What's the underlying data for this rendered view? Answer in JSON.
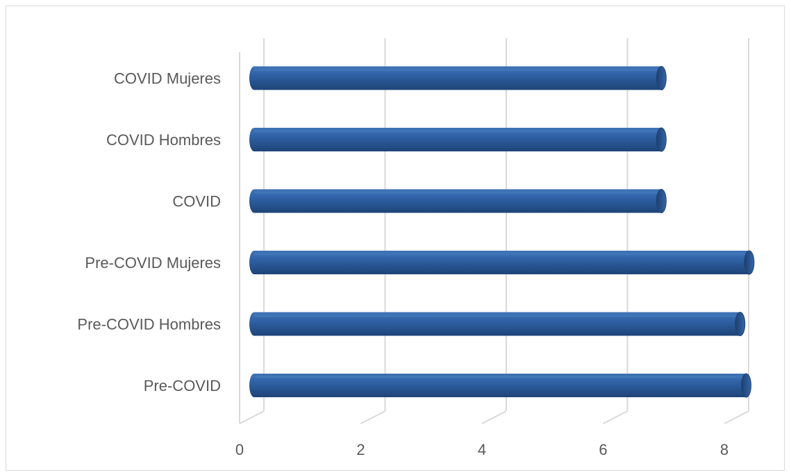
{
  "chart_data": {
    "type": "bar",
    "orientation": "horizontal",
    "style": "3d-cylinder",
    "title": "",
    "xlabel": "",
    "ylabel": "",
    "categories": [
      "Pre-COVID",
      "Pre-COVID Hombres",
      "Pre-COVID Mujeres",
      "COVID",
      "COVID Hombres",
      "COVID Mujeres"
    ],
    "values": [
      8.2,
      8.1,
      8.25,
      6.8,
      6.8,
      6.8
    ],
    "xlim": [
      0,
      8
    ],
    "x_ticks": [
      "0",
      "2",
      "4",
      "6",
      "8"
    ],
    "grid": "vertical",
    "legend": "none",
    "colors": {
      "bar": "#2e5c9e",
      "bar_dark": "#1f4475",
      "bar_light": "#4a7fc0",
      "gridline": "#d9d9d9",
      "label": "#595959",
      "frame": "#d9d9d9"
    }
  }
}
